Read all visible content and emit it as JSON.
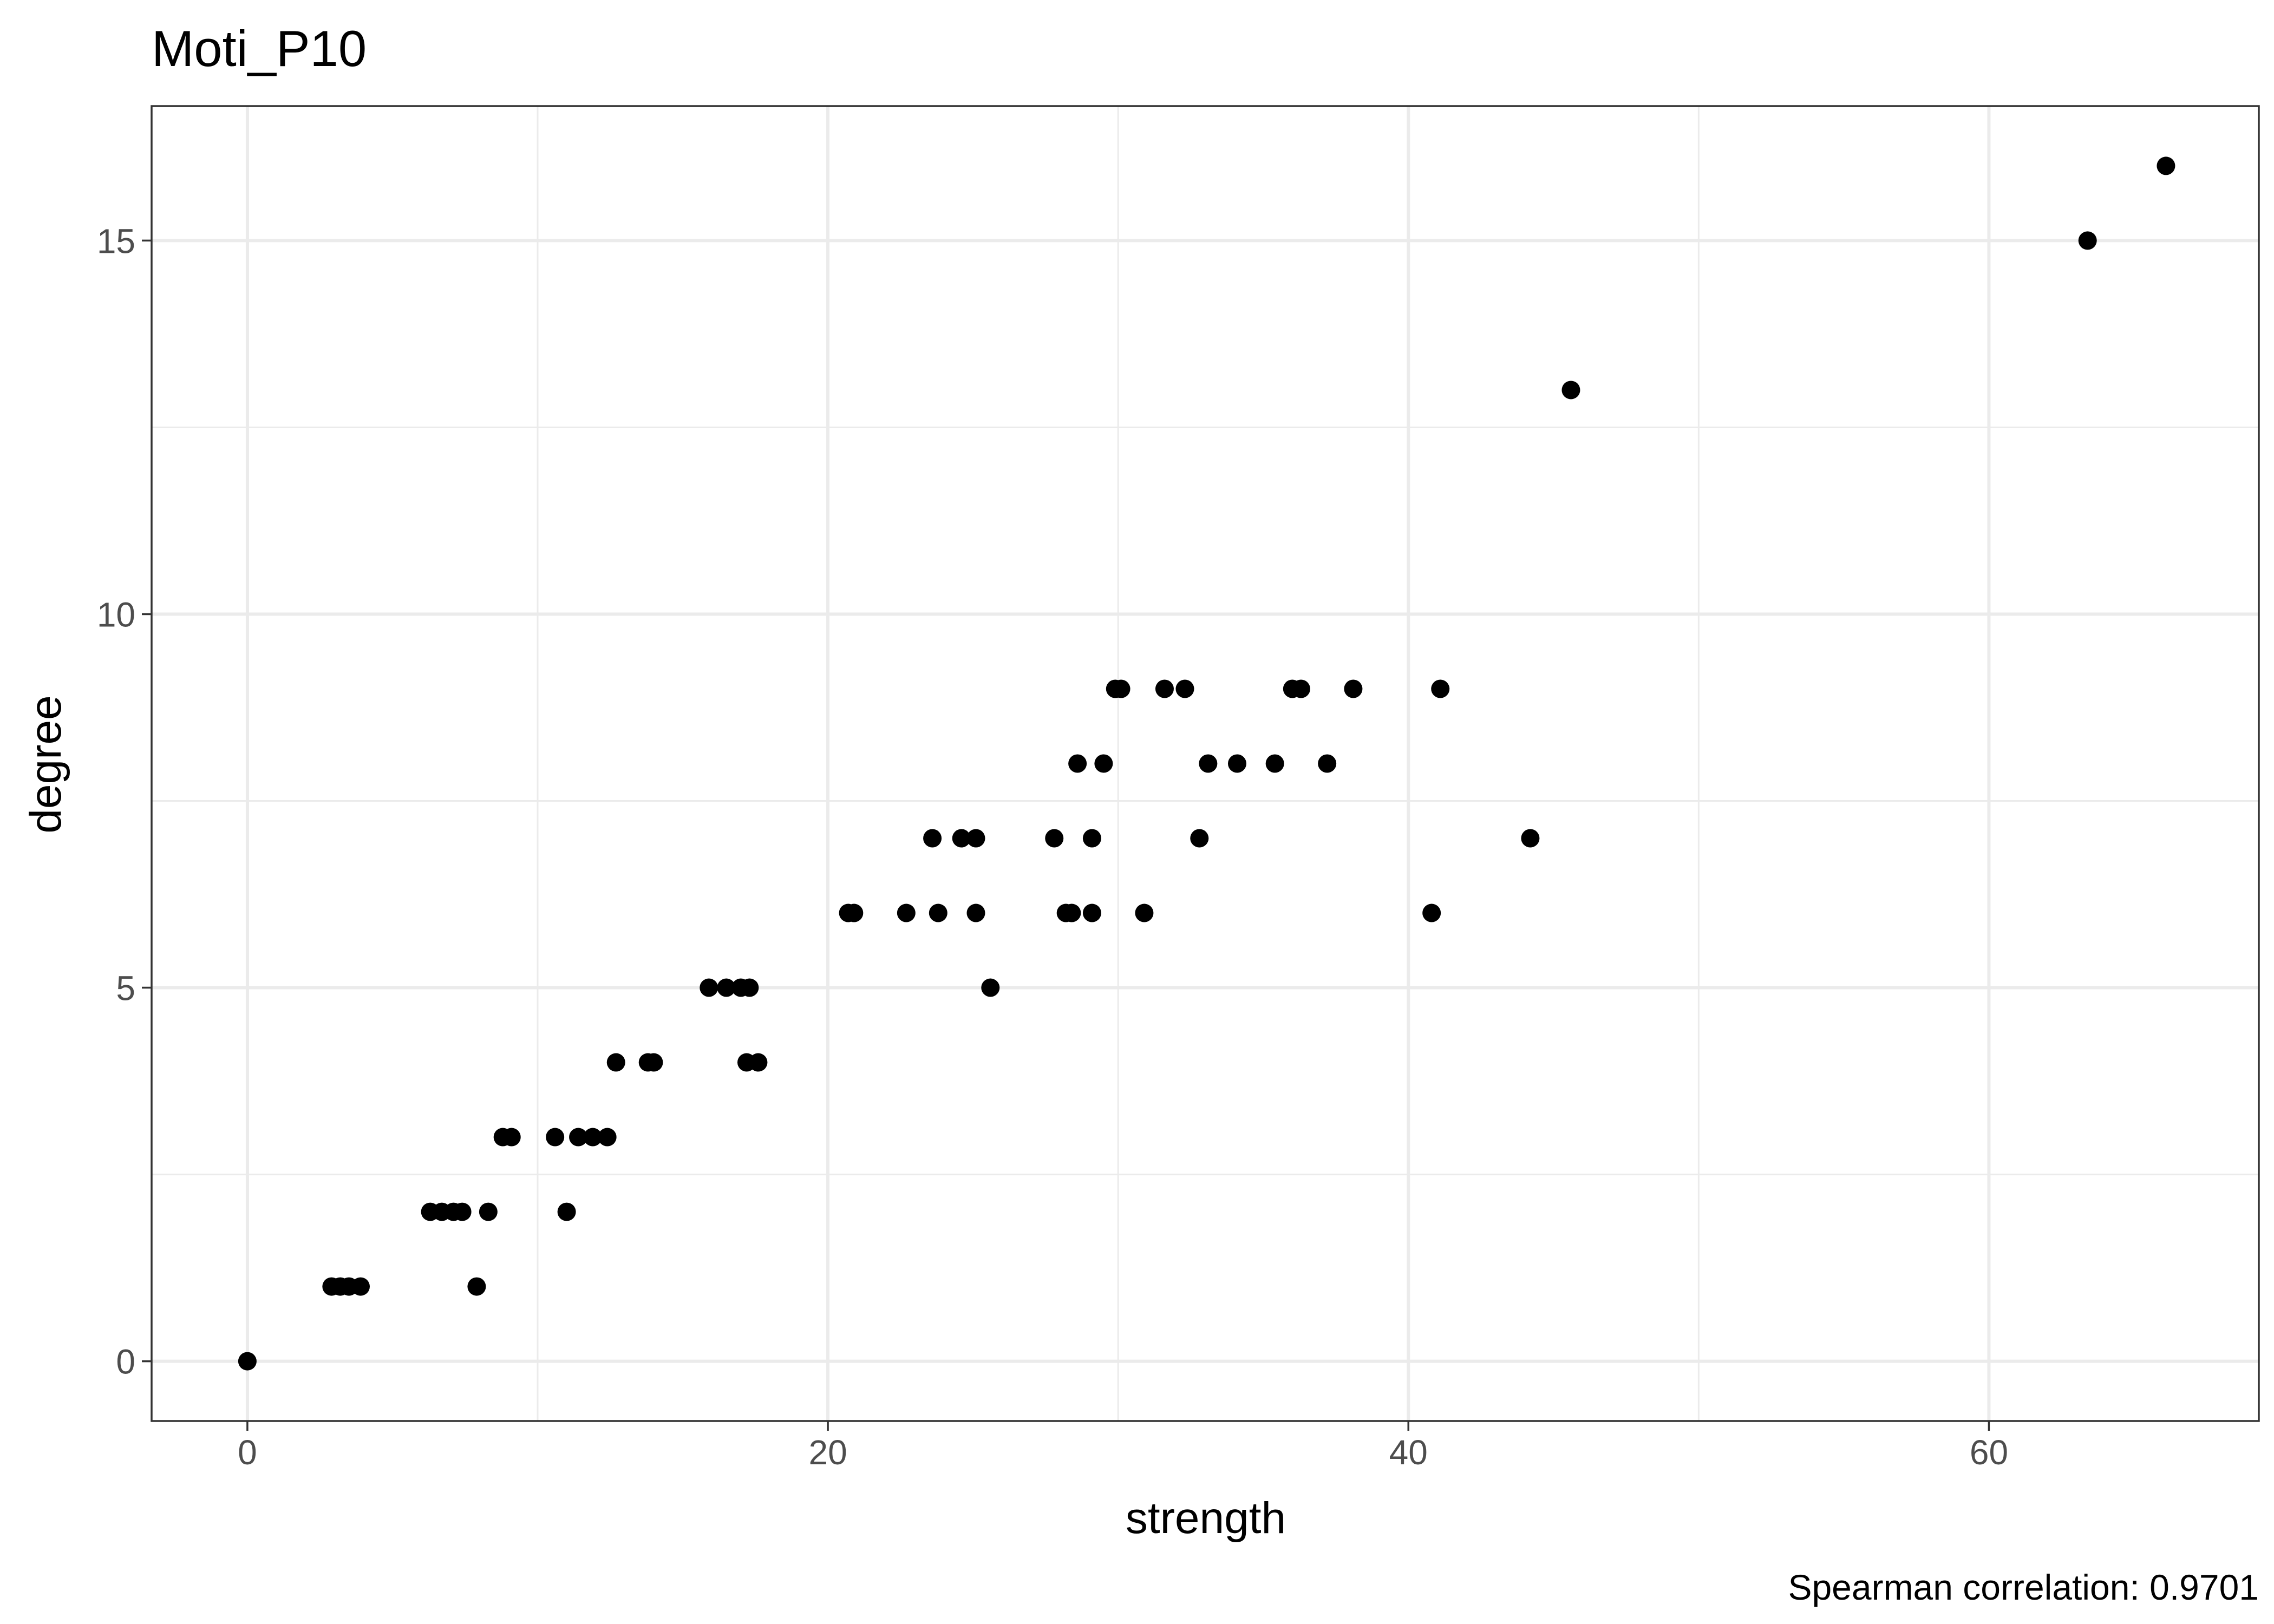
{
  "chart_data": {
    "type": "scatter",
    "title": "Moti_P10",
    "xlabel": "strength",
    "ylabel": "degree",
    "caption": "Spearman correlation: 0.9701",
    "xlim": [
      -3.3,
      69.3
    ],
    "ylim": [
      -0.8,
      16.8
    ],
    "x_ticks": [
      0,
      20,
      40,
      60
    ],
    "x_tick_labels": [
      "0",
      "20",
      "40",
      "60"
    ],
    "x_minor_ticks": [
      10,
      30,
      50
    ],
    "y_ticks": [
      0,
      5,
      10,
      15
    ],
    "y_tick_labels": [
      "0",
      "5",
      "10",
      "15"
    ],
    "y_minor_ticks": [
      2.5,
      7.5,
      12.5
    ],
    "grid": true,
    "point_color": "#000000",
    "points": [
      {
        "x": 0.0,
        "y": 0
      },
      {
        "x": 2.9,
        "y": 1
      },
      {
        "x": 3.2,
        "y": 1
      },
      {
        "x": 3.5,
        "y": 1
      },
      {
        "x": 3.9,
        "y": 1
      },
      {
        "x": 7.9,
        "y": 1
      },
      {
        "x": 6.3,
        "y": 2
      },
      {
        "x": 6.7,
        "y": 2
      },
      {
        "x": 7.1,
        "y": 2
      },
      {
        "x": 7.4,
        "y": 2
      },
      {
        "x": 8.3,
        "y": 2
      },
      {
        "x": 11.0,
        "y": 2
      },
      {
        "x": 8.8,
        "y": 3
      },
      {
        "x": 9.1,
        "y": 3
      },
      {
        "x": 10.6,
        "y": 3
      },
      {
        "x": 11.4,
        "y": 3
      },
      {
        "x": 11.9,
        "y": 3
      },
      {
        "x": 12.4,
        "y": 3
      },
      {
        "x": 12.7,
        "y": 4
      },
      {
        "x": 13.8,
        "y": 4
      },
      {
        "x": 14.0,
        "y": 4
      },
      {
        "x": 17.2,
        "y": 4
      },
      {
        "x": 17.6,
        "y": 4
      },
      {
        "x": 15.9,
        "y": 5
      },
      {
        "x": 16.5,
        "y": 5
      },
      {
        "x": 17.0,
        "y": 5
      },
      {
        "x": 17.3,
        "y": 5
      },
      {
        "x": 25.6,
        "y": 5
      },
      {
        "x": 20.7,
        "y": 6
      },
      {
        "x": 20.9,
        "y": 6
      },
      {
        "x": 22.7,
        "y": 6
      },
      {
        "x": 23.8,
        "y": 6
      },
      {
        "x": 25.1,
        "y": 6
      },
      {
        "x": 28.2,
        "y": 6
      },
      {
        "x": 28.4,
        "y": 6
      },
      {
        "x": 29.1,
        "y": 6
      },
      {
        "x": 30.9,
        "y": 6
      },
      {
        "x": 40.8,
        "y": 6
      },
      {
        "x": 23.6,
        "y": 7
      },
      {
        "x": 24.6,
        "y": 7
      },
      {
        "x": 25.1,
        "y": 7
      },
      {
        "x": 27.8,
        "y": 7
      },
      {
        "x": 29.1,
        "y": 7
      },
      {
        "x": 32.8,
        "y": 7
      },
      {
        "x": 44.2,
        "y": 7
      },
      {
        "x": 28.6,
        "y": 8
      },
      {
        "x": 29.5,
        "y": 8
      },
      {
        "x": 33.1,
        "y": 8
      },
      {
        "x": 34.1,
        "y": 8
      },
      {
        "x": 35.4,
        "y": 8
      },
      {
        "x": 37.2,
        "y": 8
      },
      {
        "x": 29.9,
        "y": 9
      },
      {
        "x": 30.1,
        "y": 9
      },
      {
        "x": 31.6,
        "y": 9
      },
      {
        "x": 32.3,
        "y": 9
      },
      {
        "x": 36.0,
        "y": 9
      },
      {
        "x": 36.3,
        "y": 9
      },
      {
        "x": 38.1,
        "y": 9
      },
      {
        "x": 41.1,
        "y": 9
      },
      {
        "x": 45.6,
        "y": 13
      },
      {
        "x": 63.4,
        "y": 15
      },
      {
        "x": 66.1,
        "y": 16
      }
    ]
  }
}
